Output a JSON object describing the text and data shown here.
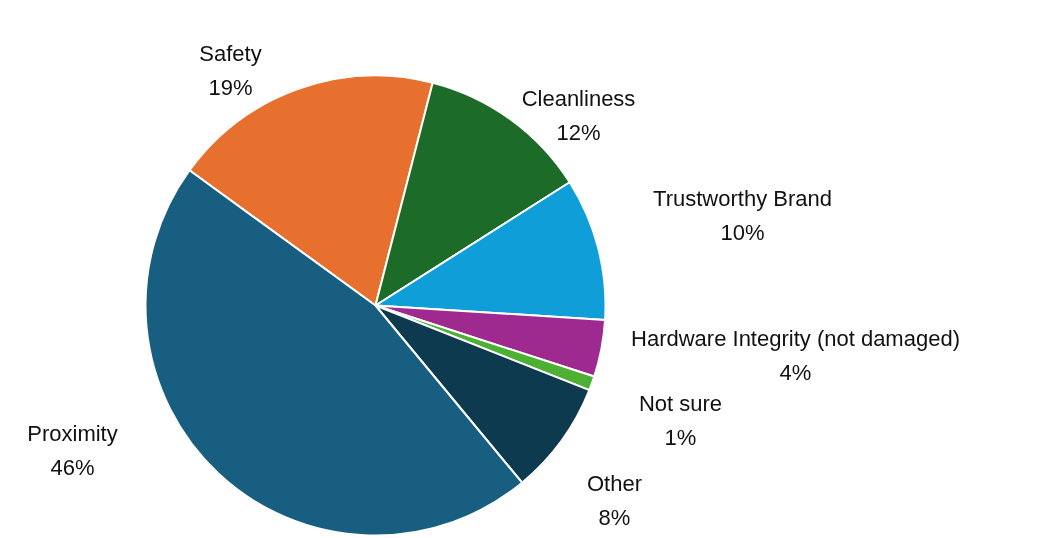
{
  "chart_data": {
    "type": "pie",
    "categories": [
      "Safety",
      "Cleanliness",
      "Trustworthy Brand",
      "Hardware Integrity (not damaged)",
      "Not sure",
      "Other",
      "Proximity"
    ],
    "values": [
      19,
      12,
      10,
      4,
      1,
      8,
      46
    ],
    "value_labels": [
      "19%",
      "12%",
      "10%",
      "4%",
      "1%",
      "8%",
      "46%"
    ],
    "colors": [
      "#e8702f",
      "#1c6b28",
      "#109ed8",
      "#9e2a8f",
      "#4db032",
      "#0e3a50",
      "#175e80"
    ]
  }
}
